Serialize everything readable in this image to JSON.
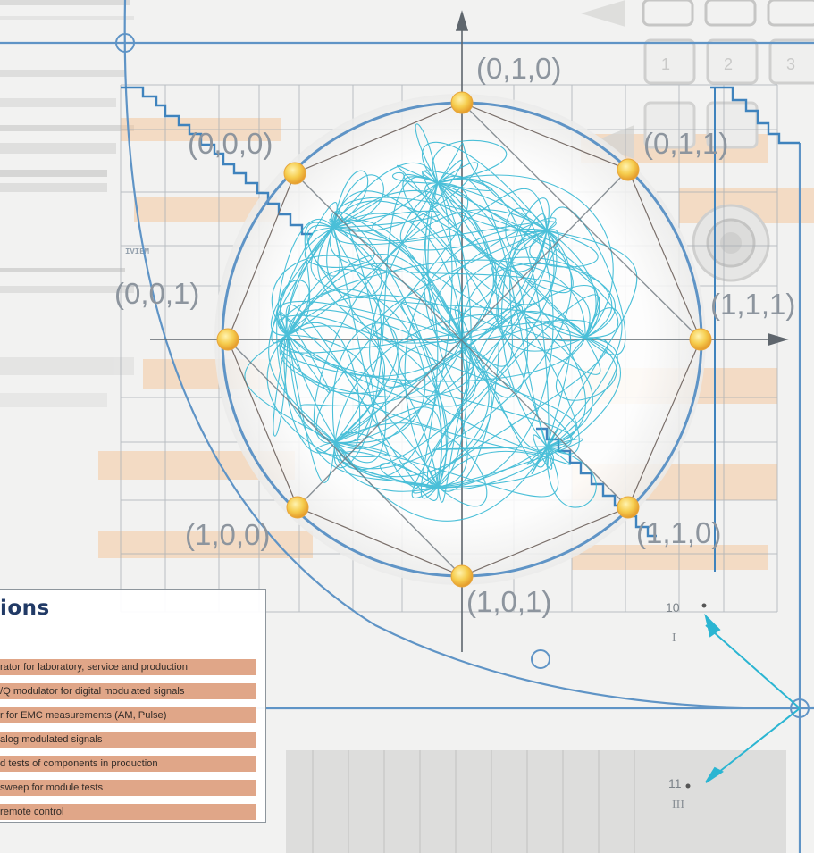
{
  "diagram": {
    "state_labels": {
      "top": "(0,1,0)",
      "upper_left": "(0,0,0)",
      "upper_right": "(0,1,1)",
      "left": "(0,0,1)",
      "right": "(1,1,1)",
      "lower_left": "(1,0,0)",
      "lower_right": "(1,1,0)",
      "bottom": "(1,0,1)"
    },
    "button_numbers": [
      "1",
      "2",
      "3"
    ],
    "background_label": "IVIEM",
    "marker_10": "10",
    "marker_10_roman": "I",
    "marker_11": "11",
    "marker_11_roman": "III",
    "trace_color": "#2bb5d2",
    "circle_color": "#5f94c6",
    "point_color": "#f4c94c"
  },
  "applications": {
    "title": "ions",
    "items": [
      "rator for laboratory, service and production",
      "/Q modulator for digital modulated signals",
      "r for EMC measurements (AM, Pulse)",
      "alog modulated signals",
      "d tests of components in production",
      "sweep for module tests",
      " remote control"
    ]
  }
}
